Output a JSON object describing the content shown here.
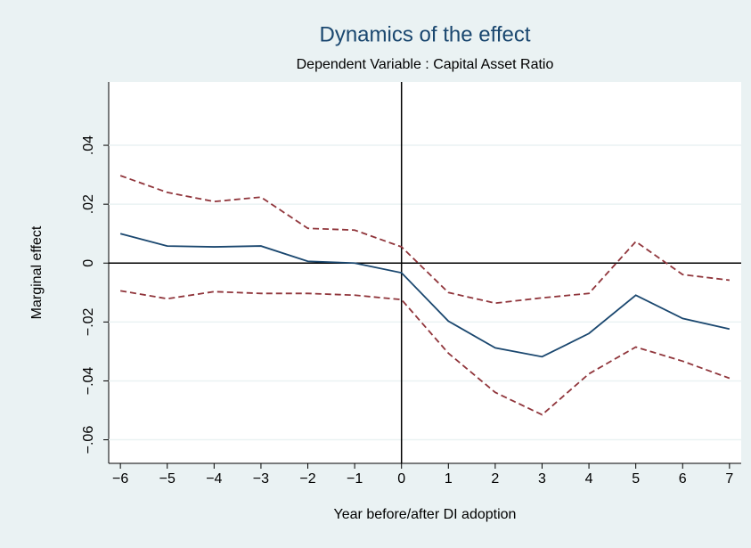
{
  "chart_data": {
    "type": "line",
    "title": "Dynamics of the effect",
    "subtitle": "Dependent Variable : Capital Asset Ratio",
    "x_label": "Year before/after DI adoption",
    "y_label": "Marginal effect",
    "x": [
      -6,
      -5,
      -4,
      -3,
      -2,
      -1,
      0,
      1,
      2,
      3,
      4,
      5,
      6,
      7
    ],
    "series": [
      {
        "color": "#1a476f",
        "dash": false,
        "values": [
          0.01,
          0.0058,
          0.0055,
          0.0058,
          0.0006,
          0.0,
          -0.0033,
          -0.0197,
          -0.0288,
          -0.0318,
          -0.0239,
          -0.0109,
          -0.0188,
          -0.0224
        ]
      },
      {
        "color": "#90353b",
        "dash": true,
        "values": [
          0.0297,
          0.024,
          0.0209,
          0.0224,
          0.0118,
          0.0112,
          0.0055,
          -0.01,
          -0.0136,
          -0.0118,
          -0.0103,
          0.0073,
          -0.0039,
          -0.0058
        ]
      },
      {
        "color": "#90353b",
        "dash": true,
        "values": [
          -0.0094,
          -0.0121,
          -0.0097,
          -0.0103,
          -0.0103,
          -0.0109,
          -0.0124,
          -0.0306,
          -0.0439,
          -0.0515,
          -0.0376,
          -0.0285,
          -0.0333,
          -0.0391
        ]
      }
    ],
    "xlim": [
      -6.25,
      7.25
    ],
    "ylim": [
      -0.068,
      0.0615
    ],
    "xticks": [
      {
        "value": -6,
        "label": "−6"
      },
      {
        "value": -5,
        "label": "−5"
      },
      {
        "value": -4,
        "label": "−4"
      },
      {
        "value": -3,
        "label": "−3"
      },
      {
        "value": -2,
        "label": "−2"
      },
      {
        "value": -1,
        "label": "−1"
      },
      0,
      1,
      2,
      3,
      4,
      5,
      6,
      7
    ],
    "yticks": [
      {
        "value": -0.06,
        "label": "−.06"
      },
      {
        "value": -0.04,
        "label": "−.04"
      },
      {
        "value": -0.02,
        "label": "−.02"
      },
      0,
      {
        "value": 0.02,
        "label": ".02"
      },
      {
        "value": 0.04,
        "label": ".04"
      }
    ],
    "grid": true,
    "reference_lines": {
      "x": 0,
      "y": 0
    }
  }
}
